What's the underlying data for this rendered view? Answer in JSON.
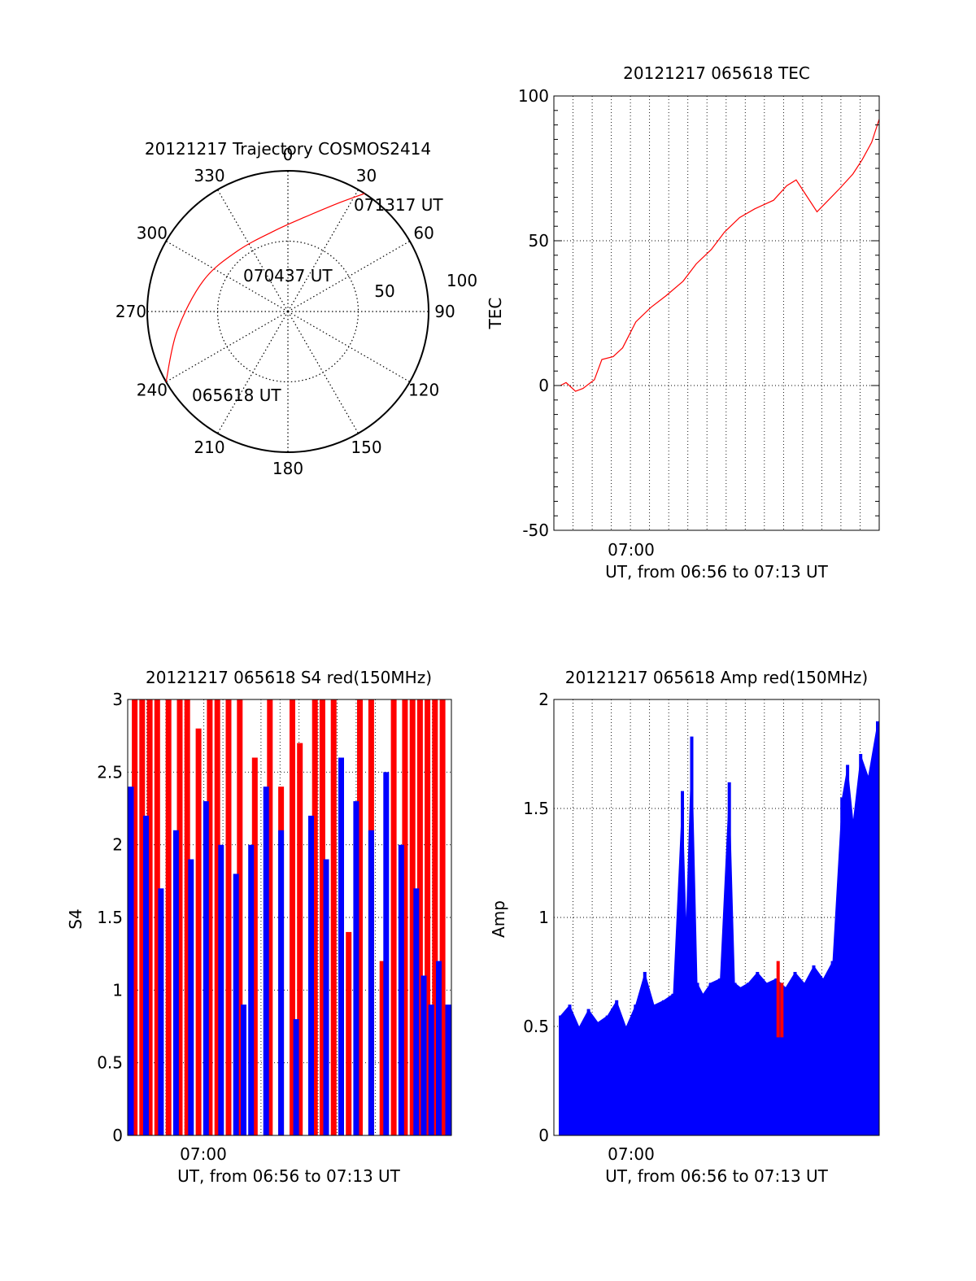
{
  "chart_data": [
    {
      "type": "polar",
      "title": "20121217 Trajectory COSMOS2414",
      "azimuth_labels": [
        "0",
        "30",
        "60",
        "90",
        "120",
        "150",
        "180",
        "210",
        "240",
        "270",
        "300",
        "330"
      ],
      "radial_labels": [
        "50",
        "100"
      ],
      "trajectory": {
        "color": "#ff0000",
        "start_label": "065618 UT",
        "mid_label": "070437 UT",
        "end_label": "071317 UT",
        "points": [
          [
            240,
            100
          ],
          [
            260,
            80
          ],
          [
            290,
            64
          ],
          [
            320,
            56
          ],
          [
            350,
            58
          ],
          [
            10,
            68
          ],
          [
            25,
            85
          ],
          [
            33,
            100
          ]
        ]
      }
    },
    {
      "type": "line",
      "title": "20121217 065618 TEC",
      "ylabel": "TEC",
      "xlabel": "UT, from 06:56 to 07:13 UT",
      "xtick_labels": [
        "07:00"
      ],
      "ylim": [
        -50,
        100
      ],
      "yticks": [
        -50,
        0,
        50,
        100
      ],
      "grid": true,
      "series": [
        {
          "color": "#ff0000",
          "x": [
            0.0,
            0.3,
            0.8,
            1.2,
            1.8,
            2.2,
            2.8,
            3.3,
            4.0,
            4.8,
            5.6,
            6.5,
            7.2,
            8.0,
            8.7,
            9.5,
            10.3,
            11.3,
            12.0,
            12.5,
            13.0,
            13.6,
            14.2,
            14.8,
            15.5,
            16.0,
            16.5,
            16.9
          ],
          "y": [
            0,
            1,
            -2,
            -1,
            2,
            9,
            10,
            13,
            22,
            27,
            31,
            36,
            42,
            47,
            53,
            58,
            61,
            64,
            69,
            71,
            66,
            60,
            64,
            68,
            73,
            78,
            84,
            92
          ]
        }
      ]
    },
    {
      "type": "bar",
      "title": "20121217 065618 S4 red(150MHz)",
      "ylabel": "S4",
      "xlabel": "UT, from 06:56 to 07:13 UT",
      "xtick_labels": [
        "07:00"
      ],
      "ylim": [
        0,
        3
      ],
      "yticks": [
        "0",
        "0.5",
        "1",
        "1.5",
        "2",
        "2.5",
        "3"
      ],
      "grid": true,
      "series": [
        {
          "color": "#0000ff",
          "x": [
            0.0,
            0.8,
            1.6,
            2.4,
            3.2,
            4.0,
            4.8,
            5.6,
            6.0,
            6.4,
            7.2,
            8.0,
            8.8,
            9.6,
            10.4,
            11.2,
            12.0,
            12.8,
            13.6,
            14.4,
            15.2,
            15.6,
            16.0,
            16.4,
            16.9
          ],
          "y": [
            2.4,
            2.2,
            1.7,
            2.1,
            1.9,
            2.3,
            2.0,
            1.8,
            0.9,
            2.0,
            2.4,
            2.1,
            0.8,
            2.2,
            1.9,
            2.6,
            2.3,
            2.1,
            2.5,
            2.0,
            1.7,
            1.1,
            0.9,
            1.2,
            0.9
          ]
        },
        {
          "color": "#ff0000",
          "x": [
            0.2,
            0.6,
            1.0,
            1.4,
            2.0,
            2.6,
            3.0,
            3.6,
            4.2,
            4.6,
            5.2,
            5.8,
            6.6,
            7.4,
            8.0,
            8.6,
            9.0,
            9.8,
            10.2,
            10.8,
            11.6,
            12.2,
            12.8,
            13.4,
            14.0,
            14.6,
            15.0,
            15.4,
            15.8,
            16.2,
            16.6
          ],
          "y": [
            3.0,
            3.0,
            3.0,
            3.0,
            3.0,
            3.0,
            3.0,
            2.8,
            3.0,
            3.0,
            3.0,
            3.0,
            2.6,
            3.0,
            2.4,
            3.0,
            2.7,
            3.0,
            3.0,
            3.0,
            1.4,
            3.0,
            3.0,
            1.2,
            3.0,
            3.0,
            3.0,
            3.0,
            3.0,
            3.0,
            3.0
          ]
        }
      ]
    },
    {
      "type": "bar",
      "title": "20121217 065618 Amp red(150MHz)",
      "ylabel": "Amp",
      "xlabel": "UT, from 06:56 to 07:13 UT",
      "xtick_labels": [
        "07:00"
      ],
      "ylim": [
        0,
        2
      ],
      "yticks": [
        "0",
        "0.5",
        "1",
        "1.5",
        "2"
      ],
      "grid": true,
      "series": [
        {
          "color": "#0000ff",
          "x": [
            0.0,
            0.5,
            1.0,
            1.5,
            2.0,
            2.5,
            3.0,
            3.5,
            4.0,
            4.5,
            5.0,
            5.5,
            6.0,
            6.5,
            6.7,
            7.0,
            7.3,
            7.6,
            8.0,
            8.5,
            9.0,
            9.3,
            9.6,
            10.0,
            10.5,
            11.0,
            11.5,
            12.0,
            12.5,
            13.0,
            13.5,
            14.0,
            14.5,
            15.0,
            15.3,
            15.6,
            16.0,
            16.4,
            16.9
          ],
          "y": [
            0.55,
            0.6,
            0.5,
            0.58,
            0.52,
            0.55,
            0.62,
            0.5,
            0.6,
            0.75,
            0.6,
            0.62,
            0.65,
            1.58,
            1.0,
            1.83,
            0.7,
            0.65,
            0.7,
            0.72,
            1.62,
            0.7,
            0.68,
            0.7,
            0.75,
            0.7,
            0.72,
            0.68,
            0.75,
            0.7,
            0.78,
            0.72,
            0.8,
            1.55,
            1.7,
            1.45,
            1.75,
            1.65,
            1.9
          ]
        },
        {
          "color": "#ff0000",
          "x": [
            11.6,
            11.8
          ],
          "y": [
            0.8,
            0.7
          ]
        }
      ]
    }
  ]
}
